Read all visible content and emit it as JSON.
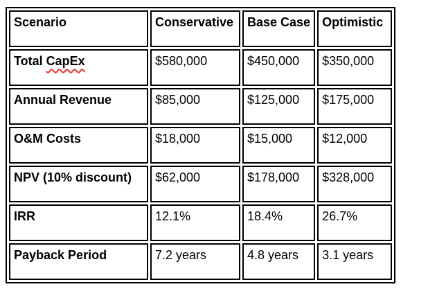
{
  "colors": {
    "border": "#000000",
    "text": "#000000",
    "cell_background": "#ffffff",
    "spellcheck_underline": "#e3342f"
  },
  "table": {
    "columns": [
      "Scenario",
      "Conservative",
      "Base Case",
      "Optimistic"
    ],
    "rows": [
      {
        "label": "Total CapEx",
        "label_parts": [
          {
            "text": "Total "
          },
          {
            "text": "CapEx",
            "spellcheck": true
          }
        ],
        "values": [
          "$580,000",
          "$450,000",
          "$350,000"
        ]
      },
      {
        "label": "Annual Revenue",
        "values": [
          "$85,000",
          "$125,000",
          "$175,000"
        ]
      },
      {
        "label": "O&M Costs",
        "values": [
          "$18,000",
          "$15,000",
          "$12,000"
        ]
      },
      {
        "label": "NPV (10% discount)",
        "values": [
          "$62,000",
          "$178,000",
          "$328,000"
        ]
      },
      {
        "label": "IRR",
        "values": [
          "12.1%",
          "18.4%",
          "26.7%"
        ]
      },
      {
        "label": "Payback Period",
        "values": [
          "7.2 years",
          "4.8 years",
          "3.1 years"
        ]
      }
    ]
  }
}
